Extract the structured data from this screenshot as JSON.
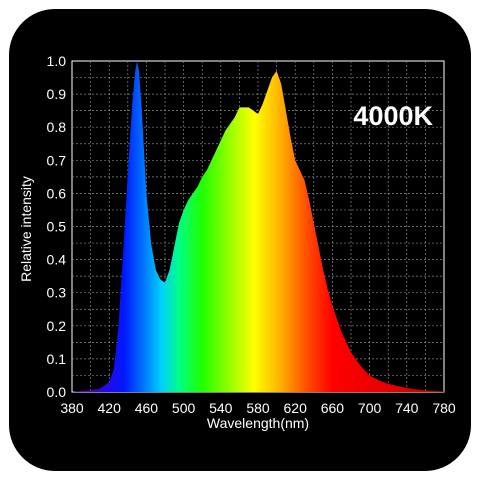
{
  "chart_data": {
    "type": "area",
    "annotation": "4000K",
    "xlabel": "Wavelength(nm)",
    "ylabel": "Relative intensity",
    "xlim": [
      380,
      780
    ],
    "ylim": [
      0,
      1.0
    ],
    "xticks": [
      380,
      420,
      460,
      500,
      540,
      580,
      620,
      660,
      700,
      740,
      780
    ],
    "yticks": [
      "0.0",
      "0.1",
      "0.2",
      "0.3",
      "0.4",
      "0.5",
      "0.6",
      "0.7",
      "0.8",
      "0.9",
      "1.0"
    ],
    "grid": true,
    "series": [
      {
        "x": [
          380,
          390,
          400,
          410,
          415,
          420,
          425,
          430,
          435,
          440,
          445,
          448,
          450,
          452,
          455,
          460,
          465,
          470,
          475,
          480,
          485,
          490,
          495,
          500,
          505,
          510,
          515,
          520,
          525,
          530,
          535,
          540,
          545,
          550,
          555,
          560,
          565,
          570,
          575,
          580,
          585,
          590,
          595,
          600,
          605,
          610,
          615,
          620,
          625,
          630,
          635,
          640,
          645,
          650,
          655,
          660,
          665,
          670,
          675,
          680,
          685,
          690,
          695,
          700,
          710,
          720,
          730,
          740,
          750,
          760,
          770,
          780
        ],
        "y": [
          0.0,
          0.003,
          0.005,
          0.01,
          0.02,
          0.03,
          0.07,
          0.2,
          0.42,
          0.66,
          0.88,
          0.97,
          1.0,
          0.97,
          0.85,
          0.6,
          0.45,
          0.37,
          0.34,
          0.33,
          0.37,
          0.44,
          0.51,
          0.55,
          0.58,
          0.6,
          0.62,
          0.65,
          0.67,
          0.7,
          0.73,
          0.76,
          0.79,
          0.81,
          0.83,
          0.86,
          0.86,
          0.86,
          0.85,
          0.84,
          0.87,
          0.91,
          0.95,
          0.97,
          0.93,
          0.85,
          0.77,
          0.7,
          0.67,
          0.64,
          0.58,
          0.51,
          0.44,
          0.37,
          0.31,
          0.26,
          0.22,
          0.18,
          0.15,
          0.12,
          0.1,
          0.08,
          0.065,
          0.05,
          0.035,
          0.025,
          0.018,
          0.012,
          0.008,
          0.005,
          0.003,
          0.002
        ]
      }
    ]
  }
}
